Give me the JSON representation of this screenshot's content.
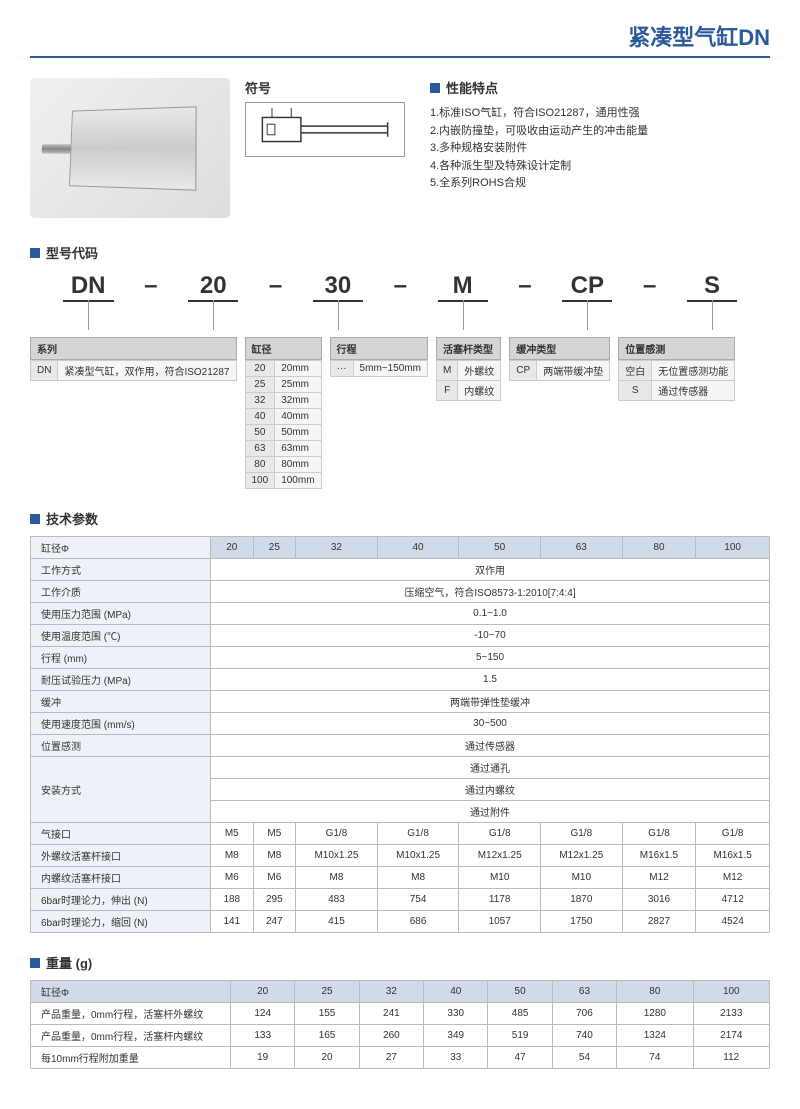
{
  "title": "紧凑型气缸DN",
  "symbol_label": "符号",
  "features": {
    "title": "性能特点",
    "items": [
      "1.标准ISO气缸，符合ISO21287，通用性强",
      "2.内嵌防撞垫，可吸收由运动产生的冲击能量",
      "3.多种规格安装附件",
      "4.各种派生型及特殊设计定制",
      "5.全系列ROHS合规"
    ]
  },
  "model": {
    "title": "型号代码",
    "parts": [
      "DN",
      "20",
      "30",
      "M",
      "CP",
      "S"
    ],
    "dash": "–",
    "series": {
      "header": "系列",
      "rows": [
        [
          "DN",
          "紧凑型气缸，双作用，符合ISO21287"
        ]
      ]
    },
    "bore": {
      "header": "缸径",
      "rows": [
        [
          "20",
          "20mm"
        ],
        [
          "25",
          "25mm"
        ],
        [
          "32",
          "32mm"
        ],
        [
          "40",
          "40mm"
        ],
        [
          "50",
          "50mm"
        ],
        [
          "63",
          "63mm"
        ],
        [
          "80",
          "80mm"
        ],
        [
          "100",
          "100mm"
        ]
      ]
    },
    "stroke": {
      "header": "行程",
      "rows": [
        [
          "···",
          "5mm~150mm"
        ]
      ]
    },
    "piston": {
      "header": "活塞杆类型",
      "rows": [
        [
          "M",
          "外螺纹"
        ],
        [
          "F",
          "内螺纹"
        ]
      ]
    },
    "cushion": {
      "header": "缓冲类型",
      "rows": [
        [
          "CP",
          "两端带缓冲垫"
        ]
      ]
    },
    "sensor": {
      "header": "位置感测",
      "rows": [
        [
          "空白",
          "无位置感测功能"
        ],
        [
          "S",
          "通过传感器"
        ]
      ]
    }
  },
  "spec": {
    "title": "技术参数",
    "bore_label": "缸径Φ",
    "bores": [
      "20",
      "25",
      "32",
      "40",
      "50",
      "63",
      "80",
      "100"
    ],
    "rows": [
      {
        "label": "工作方式",
        "span": "双作用"
      },
      {
        "label": "工作介质",
        "span": "压缩空气，符合ISO8573-1:2010[7:4:4]"
      },
      {
        "label": "使用压力范围 (MPa)",
        "span": "0.1~1.0"
      },
      {
        "label": "使用温度范围 (℃)",
        "span": "-10~70"
      },
      {
        "label": "行程 (mm)",
        "span": "5~150"
      },
      {
        "label": "耐压试验压力 (MPa)",
        "span": "1.5"
      },
      {
        "label": "缓冲",
        "span": "两端带弹性垫缓冲"
      },
      {
        "label": "使用速度范围 (mm/s)",
        "span": "30~500"
      },
      {
        "label": "位置感测",
        "span": "通过传感器"
      },
      {
        "label": "安装方式",
        "spans": [
          "通过通孔",
          "通过内螺纹",
          "通过附件"
        ]
      },
      {
        "label": "气接口",
        "vals": [
          "M5",
          "M5",
          "G1/8",
          "G1/8",
          "G1/8",
          "G1/8",
          "G1/8",
          "G1/8"
        ]
      },
      {
        "label": "外螺纹活塞杆接口",
        "vals": [
          "M8",
          "M8",
          "M10x1.25",
          "M10x1.25",
          "M12x1.25",
          "M12x1.25",
          "M16x1.5",
          "M16x1.5"
        ]
      },
      {
        "label": "内螺纹活塞杆接口",
        "vals": [
          "M6",
          "M6",
          "M8",
          "M8",
          "M10",
          "M10",
          "M12",
          "M12"
        ]
      },
      {
        "label": "6bar时理论力，伸出 (N)",
        "vals": [
          "188",
          "295",
          "483",
          "754",
          "1178",
          "1870",
          "3016",
          "4712"
        ]
      },
      {
        "label": "6bar时理论力，缩回 (N)",
        "vals": [
          "141",
          "247",
          "415",
          "686",
          "1057",
          "1750",
          "2827",
          "4524"
        ]
      }
    ]
  },
  "weight": {
    "title": "重量 (g)",
    "bore_label": "缸径Φ",
    "bores": [
      "20",
      "25",
      "32",
      "40",
      "50",
      "63",
      "80",
      "100"
    ],
    "rows": [
      {
        "label": "产品重量，0mm行程，活塞杆外螺纹",
        "vals": [
          "124",
          "155",
          "241",
          "330",
          "485",
          "706",
          "1280",
          "2133"
        ]
      },
      {
        "label": "产品重量，0mm行程，活塞杆内螺纹",
        "vals": [
          "133",
          "165",
          "260",
          "349",
          "519",
          "740",
          "1324",
          "2174"
        ]
      },
      {
        "label": "每10mm行程附加重量",
        "vals": [
          "19",
          "20",
          "27",
          "33",
          "47",
          "54",
          "74",
          "112"
        ]
      }
    ]
  }
}
